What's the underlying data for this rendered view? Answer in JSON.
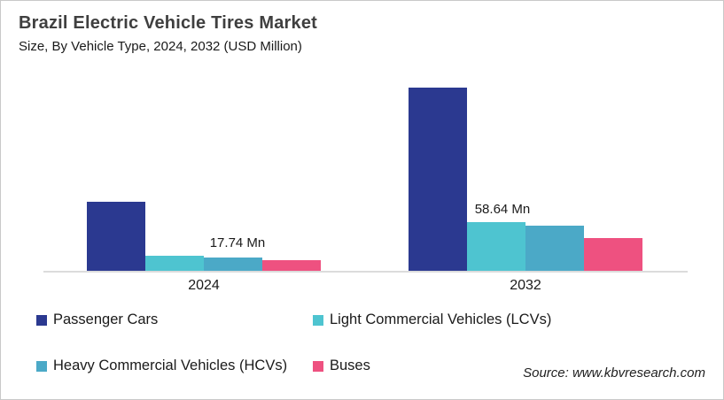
{
  "header": {
    "title": "Brazil Electric Vehicle Tires Market",
    "subtitle": "Size, By Vehicle Type, 2024, 2032 (USD Million)"
  },
  "source": "Source: www.kbvresearch.com",
  "colors": {
    "passenger_cars": "#2B3990",
    "lcv": "#4EC4D0",
    "hcv": "#4BA9C7",
    "buses": "#EE5180",
    "axis_line": "#DCDCDC",
    "title_text": "#3F3F3F",
    "body_text": "#1A1A1A",
    "card_border": "#C9C9C9"
  },
  "chart_data": {
    "type": "bar",
    "title": "Brazil Electric Vehicle Tires Market",
    "subtitle": "Size, By Vehicle Type, 2024, 2032 (USD Million)",
    "unit": "USD Million",
    "categories": [
      "2024",
      "2032"
    ],
    "series": [
      {
        "name": "Passenger Cars",
        "color": "#2B3990",
        "values": [
          84.0,
          222.0
        ],
        "labels": [
          "",
          ""
        ]
      },
      {
        "name": "Light Commercial Vehicles (LCVs)",
        "color": "#4EC4D0",
        "values": [
          17.74,
          58.64
        ],
        "labels": [
          "17.74 Mn",
          "58.64 Mn"
        ]
      },
      {
        "name": "Heavy Commercial Vehicles (HCVs)",
        "color": "#4BA9C7",
        "values": [
          16.4,
          54.6
        ],
        "labels": [
          "",
          ""
        ]
      },
      {
        "name": "Buses",
        "color": "#EE5180",
        "values": [
          12.5,
          39.7
        ],
        "labels": [
          "",
          ""
        ]
      }
    ],
    "ylim": [
      0,
      233
    ],
    "grid": false,
    "y_axis_visible": false,
    "x_axis_visible": true,
    "legend_position": "bottom"
  }
}
